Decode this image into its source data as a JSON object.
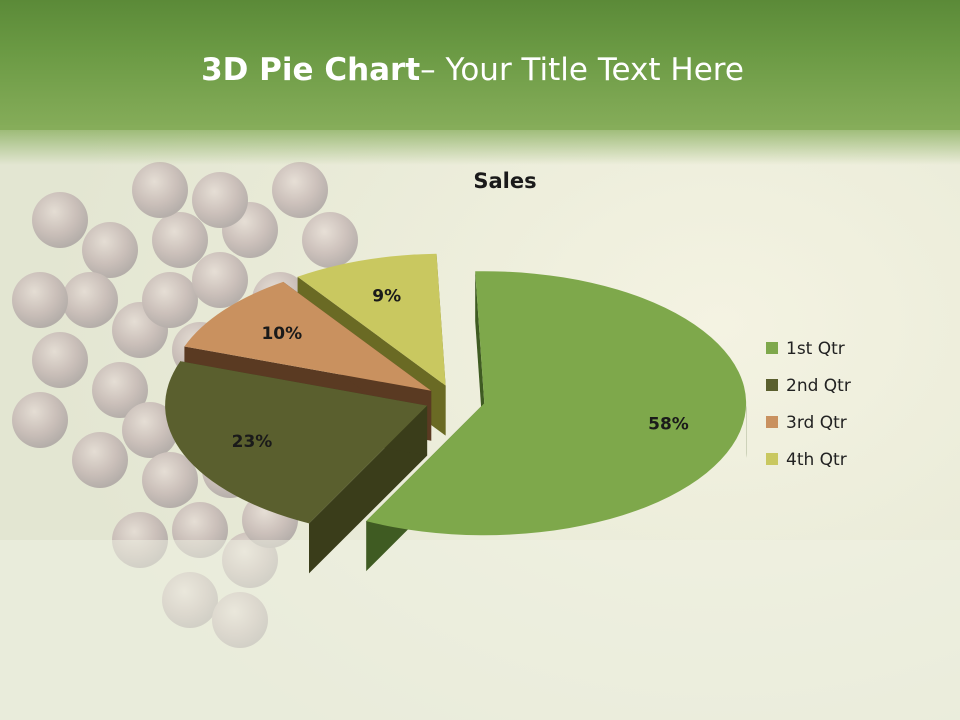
{
  "slide": {
    "title_bold": "3D Pie Chart",
    "title_rest": "– Your Title Text Here"
  },
  "background": {
    "image": "grape-cluster",
    "band_color": "#6b9a44"
  },
  "chart_data": {
    "type": "pie",
    "style": "3d-exploded",
    "title": "Sales",
    "categories": [
      "1st Qtr",
      "2nd Qtr",
      "3rd Qtr",
      "4th Qtr"
    ],
    "values": [
      58,
      23,
      10,
      9
    ],
    "data_labels": [
      "58%",
      "23%",
      "10%",
      "9%"
    ],
    "colors": [
      "#7ea84b",
      "#5a5f2e",
      "#c9915f",
      "#c9c860"
    ],
    "side_colors": [
      "#3f5b22",
      "#3a3d1a",
      "#5a3a22",
      "#6a6a24"
    ],
    "legend_position": "right"
  }
}
